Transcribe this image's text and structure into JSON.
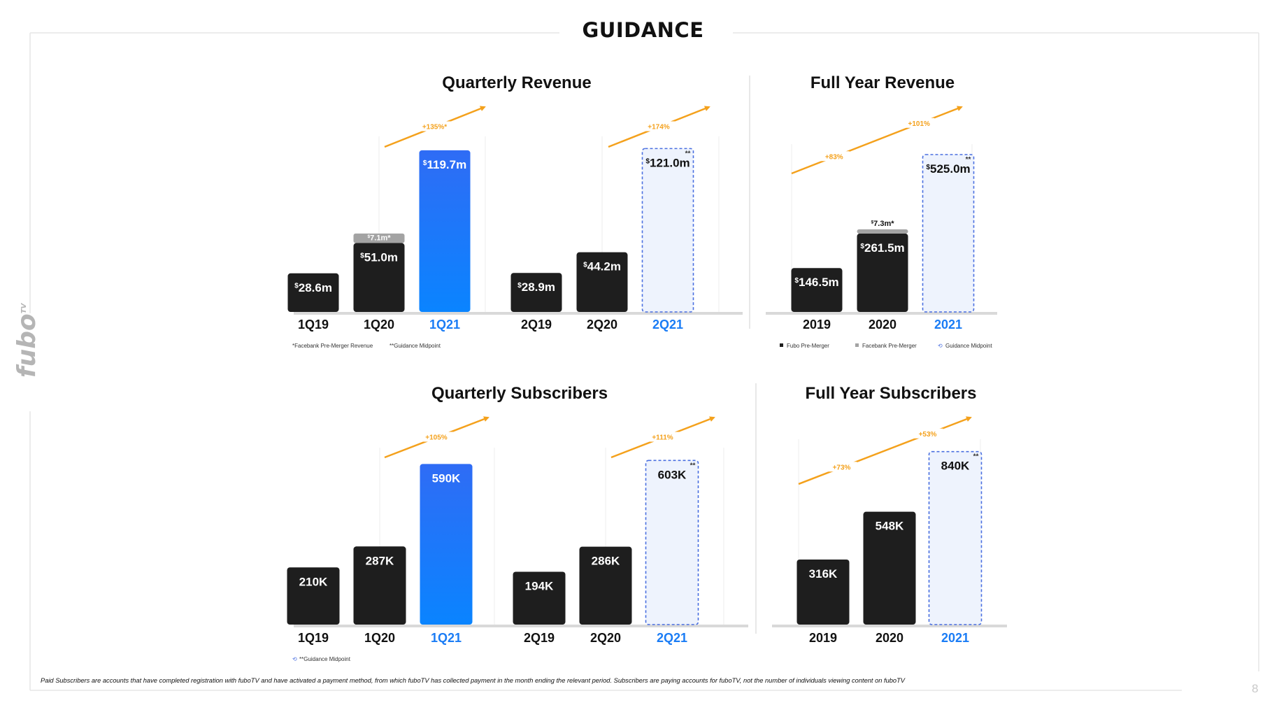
{
  "page": {
    "title": "GUIDANCE",
    "brand": "fubo",
    "brand_sup": "TV",
    "footnote": "Paid Subscribers are accounts that have completed registration with fuboTV and have activated a payment method, from which fuboTV has collected payment in the month ending the relevant period. Subscribers are paying accounts for fuboTV, not the number of individuals viewing content on fuboTV",
    "page_number": "8"
  },
  "colors": {
    "dark_bar": "#1e1e1e",
    "blue_bar_top": "#2f6cf5",
    "blue_bar_bottom": "#0a84ff",
    "guidance_fill": "#eef3fd",
    "guidance_border": "#4a6fe0",
    "gray_bar": "#a3a3a3",
    "growth_arrow": "#f4a11c",
    "highlight_label": "#1a7cf5",
    "axis": "#d9d9d9"
  },
  "chart_data": [
    {
      "id": "quarterly-revenue",
      "type": "bar",
      "title": "Quarterly Revenue",
      "categories": [
        "1Q19",
        "1Q20",
        "1Q21",
        "2Q19",
        "2Q20",
        "2Q21"
      ],
      "values": [
        28.6,
        51.0,
        119.7,
        28.9,
        44.2,
        121.0
      ],
      "stacked_top": [
        0,
        7.1,
        0,
        0,
        0,
        0
      ],
      "labels": [
        "$28.6m",
        "$51.0m",
        "$119.7m",
        "$28.9m",
        "$44.2m",
        "$121.0m"
      ],
      "stacked_labels": [
        "",
        "$7.1m*",
        "",
        "",
        "",
        ""
      ],
      "styles": [
        "dark",
        "dark",
        "blue",
        "dark",
        "dark",
        "guidance"
      ],
      "highlight_categories": [
        "1Q21",
        "2Q21"
      ],
      "growth": [
        {
          "label": "+135%*"
        },
        {
          "label": "+174%"
        }
      ],
      "footnotes": [
        "*Facebank Pre-Merger Revenue",
        "**Guidance Midpoint"
      ],
      "ylim": [
        0,
        130
      ]
    },
    {
      "id": "full-year-revenue",
      "type": "bar",
      "title": "Full Year Revenue",
      "categories": [
        "2019",
        "2020",
        "2021"
      ],
      "values": [
        146.5,
        261.5,
        525.0
      ],
      "stacked_top": [
        0,
        7.3,
        0
      ],
      "labels": [
        "$146.5m",
        "$261.5m",
        "$525.0m"
      ],
      "stacked_labels": [
        "",
        "$7.3m*",
        ""
      ],
      "styles": [
        "dark",
        "dark",
        "guidance"
      ],
      "highlight_categories": [
        "2021"
      ],
      "growth": [
        {
          "label": "+83%"
        },
        {
          "label": "+101%"
        }
      ],
      "legend": [
        "Fubo Pre-Merger",
        "Facebank Pre-Merger",
        "Guidance Midpoint"
      ],
      "ylim": [
        0,
        560
      ]
    },
    {
      "id": "quarterly-subscribers",
      "type": "bar",
      "title": "Quarterly Subscribers",
      "categories": [
        "1Q19",
        "1Q20",
        "1Q21",
        "2Q19",
        "2Q20",
        "2Q21"
      ],
      "values": [
        210,
        287,
        590,
        194,
        286,
        603
      ],
      "labels": [
        "210K",
        "287K",
        "590K",
        "194K",
        "286K",
        "603K"
      ],
      "styles": [
        "dark",
        "dark",
        "blue",
        "dark",
        "dark",
        "guidance"
      ],
      "highlight_categories": [
        "1Q21",
        "2Q21"
      ],
      "growth": [
        {
          "label": "+105%"
        },
        {
          "label": "+111%"
        }
      ],
      "footnotes": [
        "**Guidance Midpoint"
      ],
      "ylim": [
        0,
        650
      ]
    },
    {
      "id": "full-year-subscribers",
      "type": "bar",
      "title": "Full Year Subscribers",
      "categories": [
        "2019",
        "2020",
        "2021"
      ],
      "values": [
        316,
        548,
        840
      ],
      "labels": [
        "316K",
        "548K",
        "840K"
      ],
      "styles": [
        "dark",
        "dark",
        "guidance"
      ],
      "highlight_categories": [
        "2021"
      ],
      "growth": [
        {
          "label": "+73%"
        },
        {
          "label": "+53%"
        }
      ],
      "ylim": [
        0,
        900
      ]
    }
  ]
}
